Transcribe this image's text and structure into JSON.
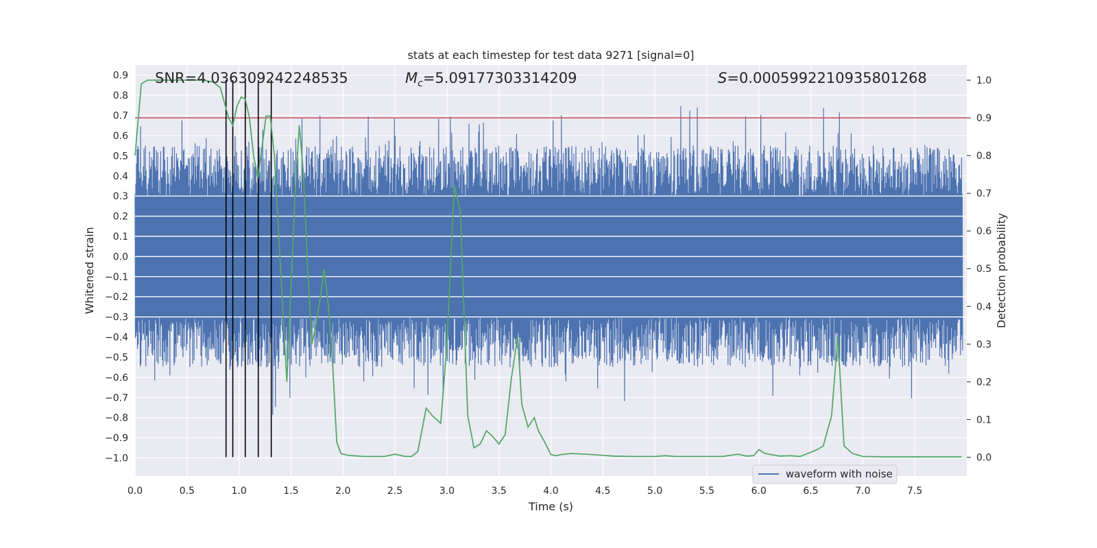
{
  "chart_data": {
    "type": "line",
    "title": "stats at each timestep for test data 9271 [signal=0]",
    "xlabel": "Time (s)",
    "ylabel": "Whitened strain",
    "y2label": "Detection probability",
    "xlim": [
      0.0,
      8.0
    ],
    "ylim": [
      -1.09,
      0.95
    ],
    "y2lim": [
      -0.05,
      1.04
    ],
    "x_ticks": [
      "0.0",
      "0.5",
      "1.0",
      "1.5",
      "2.0",
      "2.5",
      "3.0",
      "3.5",
      "4.0",
      "4.5",
      "5.0",
      "5.5",
      "6.0",
      "6.5",
      "7.0",
      "7.5"
    ],
    "y_ticks": [
      "0.9",
      "0.8",
      "0.7",
      "0.6",
      "0.5",
      "0.4",
      "0.3",
      "0.2",
      "0.1",
      "0.0",
      "−0.1",
      "−0.2",
      "−0.3",
      "−0.4",
      "−0.5",
      "−0.6",
      "−0.7",
      "−0.8",
      "−0.9",
      "−1.0"
    ],
    "y2_ticks": [
      "0.0",
      "0.1",
      "0.2",
      "0.3",
      "0.4",
      "0.5",
      "0.6",
      "0.7",
      "0.8",
      "0.9",
      "1.0"
    ],
    "annotations": {
      "snr": "SNR=4.036309242248535",
      "mc_symbol": "M",
      "mc_sub": "c",
      "mc_value": "=5.09177303314209",
      "s_symbol": "S",
      "s_value": "=0.0005992210935801268"
    },
    "threshold": 0.9,
    "vertical_markers": [
      0.875,
      0.94,
      1.06,
      1.185,
      1.31
    ],
    "legend": {
      "label": "waveform with noise",
      "location": "lower-right"
    },
    "series": [
      {
        "name": "waveform with noise",
        "color": "#4c72b0",
        "envelope": {
          "core_amplitude": 0.3,
          "typical_peak": 0.55,
          "max": 0.87,
          "min": -0.84
        }
      },
      {
        "name": "detection probability",
        "color": "#55a868",
        "axis": "right",
        "x": [
          0.0,
          0.06,
          0.12,
          0.25,
          0.4,
          0.55,
          0.65,
          0.75,
          0.82,
          0.86,
          0.9,
          0.94,
          0.98,
          1.02,
          1.06,
          1.1,
          1.14,
          1.18,
          1.22,
          1.26,
          1.3,
          1.34,
          1.38,
          1.42,
          1.46,
          1.5,
          1.54,
          1.58,
          1.62,
          1.66,
          1.7,
          1.74,
          1.78,
          1.82,
          1.86,
          1.9,
          1.94,
          1.98,
          2.05,
          2.2,
          2.4,
          2.5,
          2.6,
          2.66,
          2.72,
          2.8,
          2.86,
          2.94,
          3.0,
          3.07,
          3.13,
          3.2,
          3.26,
          3.32,
          3.38,
          3.44,
          3.5,
          3.56,
          3.62,
          3.68,
          3.72,
          3.78,
          3.84,
          3.88,
          3.94,
          4.0,
          4.05,
          4.1,
          4.2,
          4.4,
          4.6,
          4.8,
          5.0,
          5.1,
          5.2,
          5.3,
          5.5,
          5.65,
          5.8,
          5.88,
          5.95,
          6.0,
          6.06,
          6.2,
          6.3,
          6.4,
          6.56,
          6.62,
          6.7,
          6.76,
          6.82,
          6.9,
          7.0,
          7.2,
          7.5,
          7.95
        ],
        "y": [
          0.8,
          0.99,
          1.0,
          1.0,
          1.0,
          1.0,
          1.0,
          0.995,
          0.98,
          0.94,
          0.9,
          0.88,
          0.93,
          0.955,
          0.95,
          0.9,
          0.8,
          0.74,
          0.82,
          0.905,
          0.905,
          0.8,
          0.6,
          0.4,
          0.2,
          0.45,
          0.7,
          0.88,
          0.75,
          0.5,
          0.3,
          0.35,
          0.42,
          0.5,
          0.4,
          0.25,
          0.04,
          0.01,
          0.005,
          0.002,
          0.002,
          0.008,
          0.002,
          0.002,
          0.015,
          0.13,
          0.11,
          0.09,
          0.3,
          0.72,
          0.65,
          0.11,
          0.025,
          0.035,
          0.07,
          0.055,
          0.035,
          0.06,
          0.21,
          0.32,
          0.14,
          0.08,
          0.105,
          0.07,
          0.04,
          0.007,
          0.004,
          0.007,
          0.01,
          0.007,
          0.003,
          0.002,
          0.002,
          0.004,
          0.002,
          0.002,
          0.002,
          0.002,
          0.008,
          0.003,
          0.004,
          0.02,
          0.01,
          0.003,
          0.004,
          0.002,
          0.02,
          0.03,
          0.11,
          0.32,
          0.03,
          0.01,
          0.002,
          0.001,
          0.001,
          0.001
        ]
      }
    ]
  }
}
